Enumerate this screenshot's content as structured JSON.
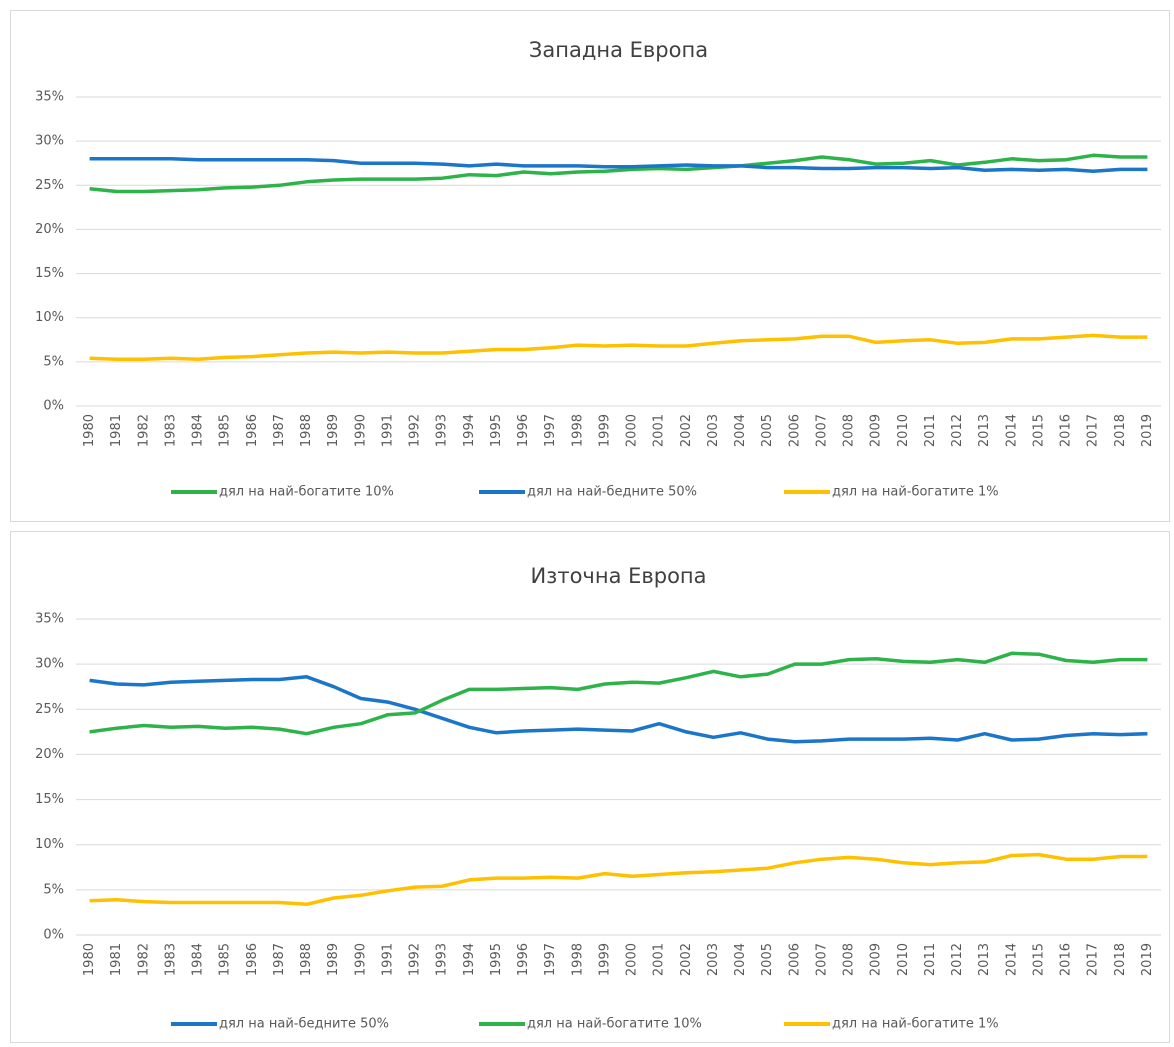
{
  "chart_data": [
    {
      "type": "line",
      "title": "Западна Европа",
      "categories": [
        "1980",
        "1981",
        "1982",
        "1983",
        "1984",
        "1985",
        "1986",
        "1987",
        "1988",
        "1989",
        "1990",
        "1991",
        "1992",
        "1993",
        "1994",
        "1995",
        "1996",
        "1997",
        "1998",
        "1999",
        "2000",
        "2001",
        "2002",
        "2003",
        "2004",
        "2005",
        "2006",
        "2007",
        "2008",
        "2009",
        "2010",
        "2011",
        "2012",
        "2013",
        "2014",
        "2015",
        "2016",
        "2017",
        "2018",
        "2019"
      ],
      "series": [
        {
          "name": "дял на най-богатите 10%",
          "color": "#2db34a",
          "values": [
            24.6,
            24.3,
            24.3,
            24.4,
            24.5,
            24.7,
            24.8,
            25.0,
            25.4,
            25.6,
            25.7,
            25.7,
            25.7,
            25.8,
            26.2,
            26.1,
            26.5,
            26.3,
            26.5,
            26.6,
            26.8,
            26.9,
            26.8,
            27.0,
            27.2,
            27.5,
            27.8,
            28.2,
            27.9,
            27.4,
            27.5,
            27.8,
            27.3,
            27.6,
            28.0,
            27.8,
            27.9,
            28.4,
            28.2,
            28.2
          ]
        },
        {
          "name": "дял на най-бедните 50%",
          "color": "#1b75c9",
          "values": [
            28.0,
            28.0,
            28.0,
            28.0,
            27.9,
            27.9,
            27.9,
            27.9,
            27.9,
            27.8,
            27.5,
            27.5,
            27.5,
            27.4,
            27.2,
            27.4,
            27.2,
            27.2,
            27.2,
            27.1,
            27.1,
            27.2,
            27.3,
            27.2,
            27.2,
            27.0,
            27.0,
            26.9,
            26.9,
            27.0,
            27.0,
            26.9,
            27.0,
            26.7,
            26.8,
            26.7,
            26.8,
            26.6,
            26.8,
            26.8
          ]
        },
        {
          "name": "дял на най-богатите 1%",
          "color": "#ffc000",
          "values": [
            5.4,
            5.3,
            5.3,
            5.4,
            5.3,
            5.5,
            5.6,
            5.8,
            6.0,
            6.1,
            6.0,
            6.1,
            6.0,
            6.0,
            6.2,
            6.4,
            6.4,
            6.6,
            6.9,
            6.8,
            6.9,
            6.8,
            6.8,
            7.1,
            7.4,
            7.5,
            7.6,
            7.9,
            7.9,
            7.2,
            7.4,
            7.5,
            7.1,
            7.2,
            7.6,
            7.6,
            7.8,
            8.0,
            7.8,
            7.8
          ]
        }
      ],
      "ylim": [
        0,
        35
      ],
      "yticks": [
        {
          "value": 0,
          "label": "0%"
        },
        {
          "value": 5,
          "label": "5%"
        },
        {
          "value": 10,
          "label": "10%"
        },
        {
          "value": 15,
          "label": "15%"
        },
        {
          "value": 20,
          "label": "20%"
        },
        {
          "value": 25,
          "label": "25%"
        },
        {
          "value": 30,
          "label": "30%"
        },
        {
          "value": 35,
          "label": "35%"
        }
      ],
      "grid": true,
      "legend": "bottom"
    },
    {
      "type": "line",
      "title": "Източна Европа",
      "categories": [
        "1980",
        "1981",
        "1982",
        "1983",
        "1984",
        "1985",
        "1986",
        "1987",
        "1988",
        "1989",
        "1990",
        "1991",
        "1992",
        "1993",
        "1994",
        "1995",
        "1996",
        "1997",
        "1998",
        "1999",
        "2000",
        "2001",
        "2002",
        "2003",
        "2004",
        "2005",
        "2006",
        "2007",
        "2008",
        "2009",
        "2010",
        "2011",
        "2012",
        "2013",
        "2014",
        "2015",
        "2016",
        "2017",
        "2018",
        "2019"
      ],
      "series": [
        {
          "name": "дял на най-бедните 50%",
          "color": "#1b75c9",
          "values": [
            28.2,
            27.8,
            27.7,
            28.0,
            28.1,
            28.2,
            28.3,
            28.3,
            28.6,
            27.5,
            26.2,
            25.8,
            25.0,
            24.0,
            23.0,
            22.4,
            22.6,
            22.7,
            22.8,
            22.7,
            22.6,
            23.4,
            22.5,
            21.9,
            22.4,
            21.7,
            21.4,
            21.5,
            21.7,
            21.7,
            21.7,
            21.8,
            21.6,
            22.3,
            21.6,
            21.7,
            22.1,
            22.3,
            22.2,
            22.3
          ]
        },
        {
          "name": "дял на най-богатите 10%",
          "color": "#2db34a",
          "values": [
            22.5,
            22.9,
            23.2,
            23.0,
            23.1,
            22.9,
            23.0,
            22.8,
            22.3,
            23.0,
            23.4,
            24.4,
            24.6,
            26.0,
            27.2,
            27.2,
            27.3,
            27.4,
            27.2,
            27.8,
            28.0,
            27.9,
            28.5,
            29.2,
            28.6,
            28.9,
            30.0,
            30.0,
            30.5,
            30.6,
            30.3,
            30.2,
            30.5,
            30.2,
            31.2,
            31.1,
            30.4,
            30.2,
            30.5,
            30.5
          ]
        },
        {
          "name": "дял на най-богатите 1%",
          "color": "#ffc000",
          "values": [
            3.8,
            3.9,
            3.7,
            3.6,
            3.6,
            3.6,
            3.6,
            3.6,
            3.4,
            4.1,
            4.4,
            4.9,
            5.3,
            5.4,
            6.1,
            6.3,
            6.3,
            6.4,
            6.3,
            6.8,
            6.5,
            6.7,
            6.9,
            7.0,
            7.2,
            7.4,
            8.0,
            8.4,
            8.6,
            8.4,
            8.0,
            7.8,
            8.0,
            8.1,
            8.8,
            8.9,
            8.4,
            8.4,
            8.7,
            8.7
          ]
        }
      ],
      "ylim": [
        0,
        35
      ],
      "yticks": [
        {
          "value": 0,
          "label": "0%"
        },
        {
          "value": 5,
          "label": "5%"
        },
        {
          "value": 10,
          "label": "10%"
        },
        {
          "value": 15,
          "label": "15%"
        },
        {
          "value": 20,
          "label": "20%"
        },
        {
          "value": 25,
          "label": "25%"
        },
        {
          "value": 30,
          "label": "30%"
        },
        {
          "value": 35,
          "label": "35%"
        }
      ],
      "grid": true,
      "legend": "bottom"
    }
  ]
}
